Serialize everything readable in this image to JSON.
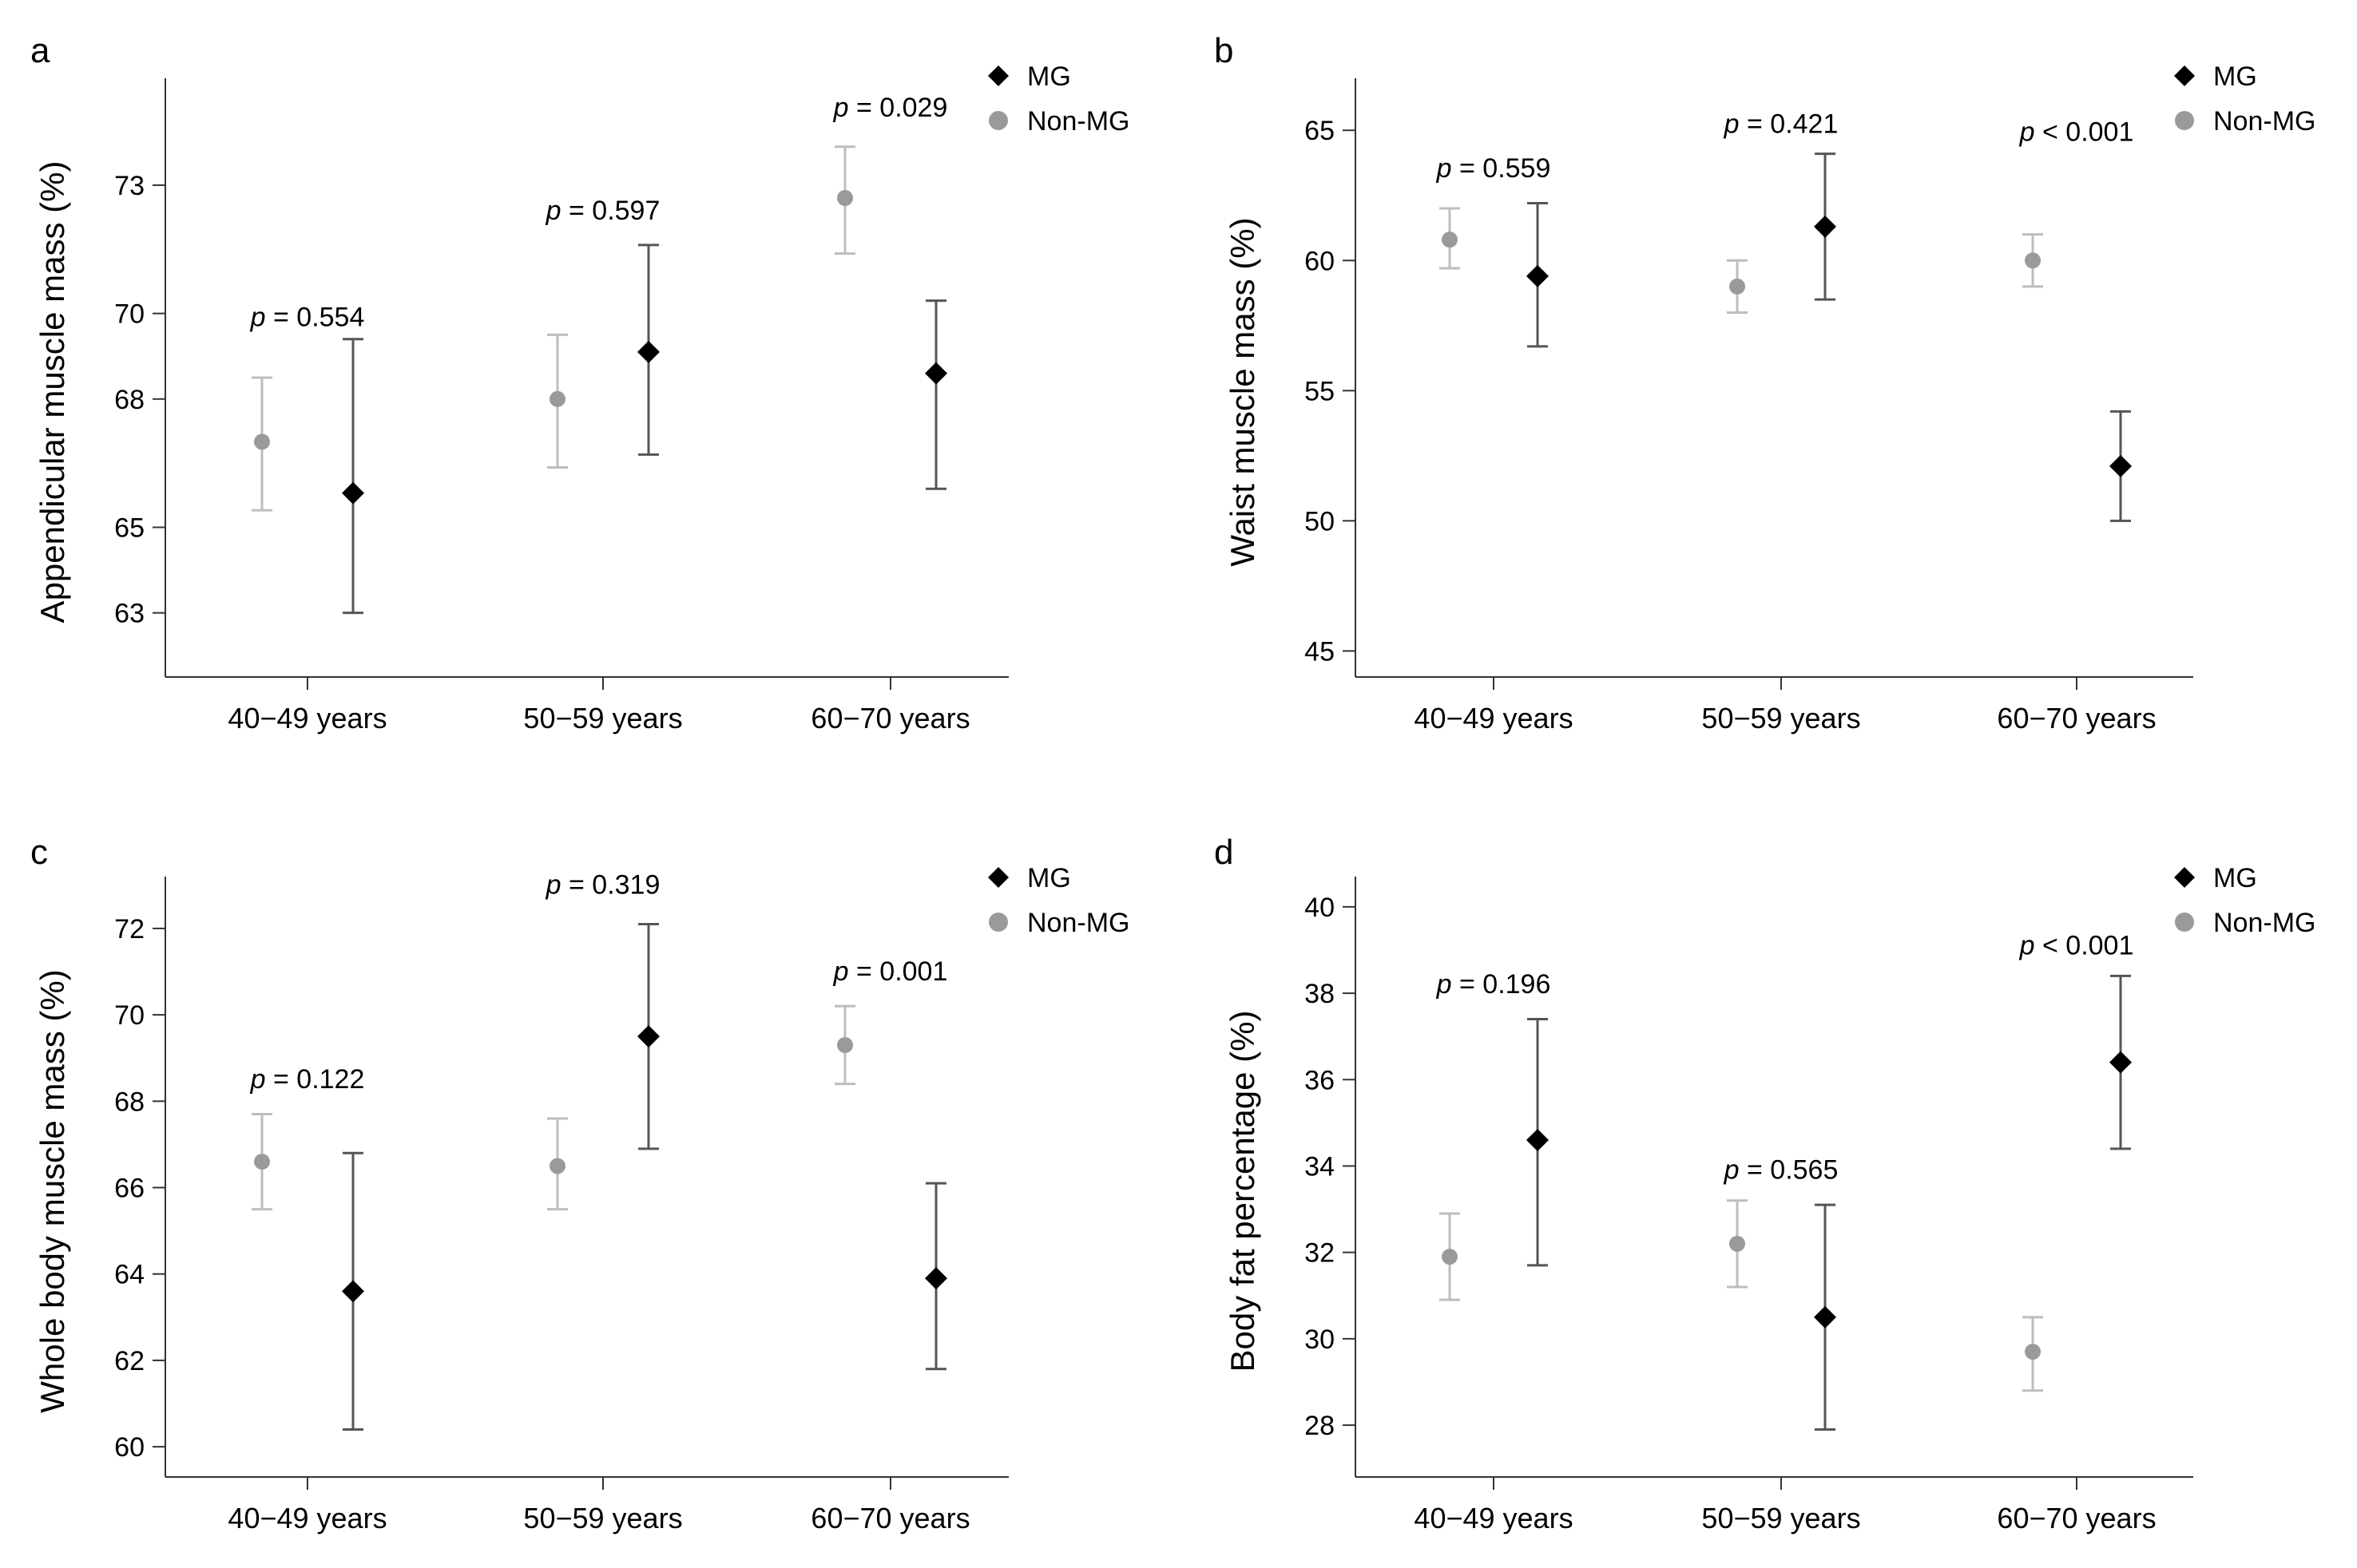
{
  "figure": {
    "groups": [
      "40−49 years",
      "50−59 years",
      "60−70 years"
    ],
    "legend": {
      "mg": "MG",
      "non_mg": "Non-MG"
    },
    "colors": {
      "mg": "#000000",
      "non_mg_marker": "#9a9a9a",
      "non_mg_errorbar": "#bdbdbd",
      "mg_errorbar": "#555555",
      "axis": "#333333",
      "text": "#000000"
    }
  },
  "chart_data": [
    {
      "type": "scatter",
      "panel_label": "a",
      "title": "",
      "xlabel": "",
      "ylabel": "Appendicular muscle mass (%)",
      "categories": [
        "40−49 years",
        "50−59 years",
        "60−70 years"
      ],
      "ylim": [
        61.5,
        75.5
      ],
      "yticks": [
        63,
        65,
        68,
        70,
        73
      ],
      "yticklabels": [
        "63",
        "65",
        "68",
        "70",
        "73"
      ],
      "legend_position": "top-right",
      "series": [
        {
          "name": "Non-MG",
          "values": [
            67.0,
            68.0,
            72.7
          ],
          "lower": [
            65.4,
            66.4,
            71.4
          ],
          "upper": [
            68.5,
            69.5,
            73.9
          ]
        },
        {
          "name": "MG",
          "values": [
            65.8,
            69.1,
            68.6
          ],
          "lower": [
            63.0,
            66.7,
            65.9
          ],
          "upper": [
            69.4,
            71.6,
            70.3
          ]
        }
      ],
      "annotations": [
        {
          "group": 0,
          "p": "p",
          "rest": " = 0.554",
          "value": 69.7
        },
        {
          "group": 1,
          "p": "p",
          "rest": " = 0.597",
          "value": 72.2
        },
        {
          "group": 2,
          "p": "p",
          "rest": " = 0.029",
          "value": 74.6
        }
      ]
    },
    {
      "type": "scatter",
      "panel_label": "b",
      "title": "",
      "xlabel": "",
      "ylabel": "Waist muscle mass (%)",
      "categories": [
        "40−49 years",
        "50−59 years",
        "60−70 years"
      ],
      "ylim": [
        44,
        67
      ],
      "yticks": [
        45,
        50,
        55,
        60,
        65
      ],
      "yticklabels": [
        "45",
        "50",
        "55",
        "60",
        "65"
      ],
      "legend_position": "top-right",
      "series": [
        {
          "name": "Non-MG",
          "values": [
            60.8,
            59.0,
            60.0
          ],
          "lower": [
            59.7,
            58.0,
            59.0
          ],
          "upper": [
            62.0,
            60.0,
            61.0
          ]
        },
        {
          "name": "MG",
          "values": [
            59.4,
            61.3,
            52.1
          ],
          "lower": [
            56.7,
            58.5,
            50.0
          ],
          "upper": [
            62.2,
            64.1,
            54.2
          ]
        }
      ],
      "annotations": [
        {
          "group": 0,
          "p": "p",
          "rest": " = 0.559",
          "value": 63.2
        },
        {
          "group": 1,
          "p": "p",
          "rest": " = 0.421",
          "value": 64.9
        },
        {
          "group": 2,
          "p": "p",
          "rest": " < 0.001",
          "value": 64.6
        }
      ]
    },
    {
      "type": "scatter",
      "panel_label": "c",
      "title": "",
      "xlabel": "",
      "ylabel": "Whole body muscle mass (%)",
      "categories": [
        "40−49 years",
        "50−59 years",
        "60−70 years"
      ],
      "ylim": [
        59.3,
        73.2
      ],
      "yticks": [
        60,
        62,
        64,
        66,
        68,
        70,
        72
      ],
      "yticklabels": [
        "60",
        "62",
        "64",
        "66",
        "68",
        "70",
        "72"
      ],
      "legend_position": "top-right",
      "series": [
        {
          "name": "Non-MG",
          "values": [
            66.6,
            66.5,
            69.3
          ],
          "lower": [
            65.5,
            65.5,
            68.4
          ],
          "upper": [
            67.7,
            67.6,
            70.2
          ]
        },
        {
          "name": "MG",
          "values": [
            63.6,
            69.5,
            63.9
          ],
          "lower": [
            60.4,
            66.9,
            61.8
          ],
          "upper": [
            66.8,
            72.1,
            66.1
          ]
        }
      ],
      "annotations": [
        {
          "group": 0,
          "p": "p",
          "rest": " = 0.122",
          "value": 68.3
        },
        {
          "group": 1,
          "p": "p",
          "rest": " = 0.319",
          "value": 72.8
        },
        {
          "group": 2,
          "p": "p",
          "rest": " = 0.001",
          "value": 70.8
        }
      ]
    },
    {
      "type": "scatter",
      "panel_label": "d",
      "title": "",
      "xlabel": "",
      "ylabel": "Body fat percentage (%)",
      "categories": [
        "40−49 years",
        "50−59 years",
        "60−70 years"
      ],
      "ylim": [
        26.8,
        40.7
      ],
      "yticks": [
        28,
        30,
        32,
        34,
        36,
        38,
        40
      ],
      "yticklabels": [
        "28",
        "30",
        "32",
        "34",
        "36",
        "38",
        "40"
      ],
      "legend_position": "top-right",
      "series": [
        {
          "name": "Non-MG",
          "values": [
            31.9,
            32.2,
            29.7
          ],
          "lower": [
            30.9,
            31.2,
            28.8
          ],
          "upper": [
            32.9,
            33.2,
            30.5
          ]
        },
        {
          "name": "MG",
          "values": [
            34.6,
            30.5,
            36.4
          ],
          "lower": [
            31.7,
            27.9,
            34.4
          ],
          "upper": [
            37.4,
            33.1,
            38.4
          ]
        }
      ],
      "annotations": [
        {
          "group": 0,
          "p": "p",
          "rest": " = 0.196",
          "value": 38.0
        },
        {
          "group": 1,
          "p": "p",
          "rest": " = 0.565",
          "value": 33.7
        },
        {
          "group": 2,
          "p": "p",
          "rest": " < 0.001",
          "value": 38.9
        }
      ]
    }
  ]
}
